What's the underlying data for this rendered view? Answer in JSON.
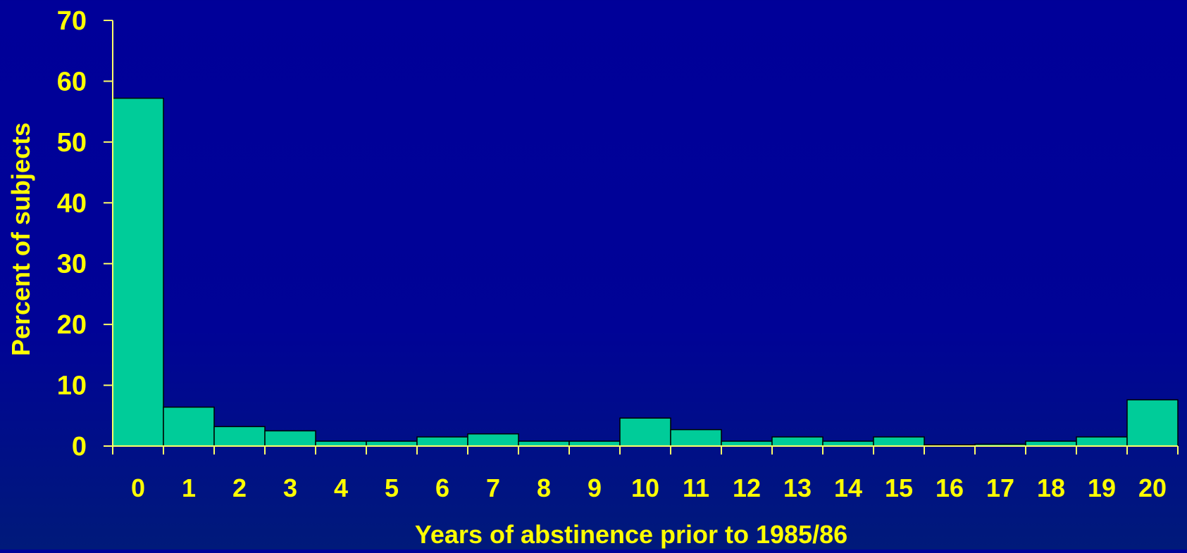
{
  "chart_data": {
    "type": "bar",
    "title": "",
    "xlabel": "Years of abstinence prior to 1985/86",
    "ylabel": "Percent of subjects",
    "categories": [
      "0",
      "1",
      "2",
      "3",
      "4",
      "5",
      "6",
      "7",
      "8",
      "9",
      "10",
      "11",
      "12",
      "13",
      "14",
      "15",
      "16",
      "17",
      "18",
      "19",
      "20"
    ],
    "values": [
      57.2,
      6.4,
      3.2,
      2.5,
      0.8,
      0.8,
      1.5,
      2.0,
      0.8,
      0.8,
      4.6,
      2.7,
      0.8,
      1.5,
      0.8,
      1.5,
      0.2,
      0.3,
      0.8,
      1.5,
      7.6
    ],
    "yticks": [
      "0",
      "10",
      "20",
      "30",
      "40",
      "50",
      "60",
      "70"
    ],
    "ylim": [
      0,
      70
    ],
    "grid": false,
    "legend": "none"
  },
  "colors": {
    "bar_fill": "#00CC99",
    "bar_stroke": "#000000",
    "axis": "#FFFF66",
    "text": "#FFFF00"
  }
}
